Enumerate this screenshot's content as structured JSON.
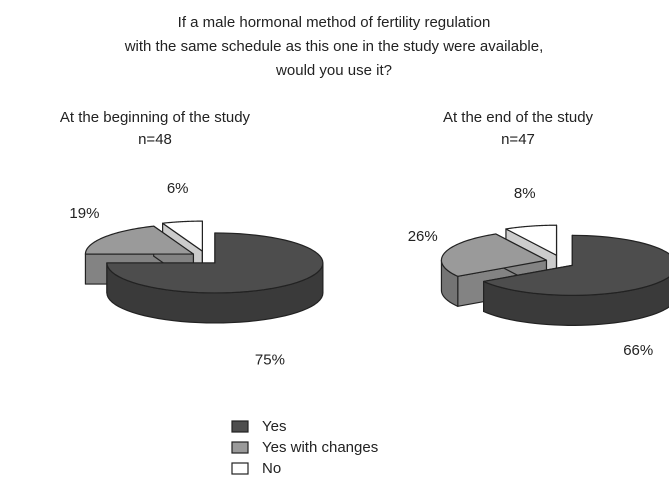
{
  "title": [
    "If a male hormonal method of fertility regulation",
    "with the same schedule as this one in the study were available,",
    "would you use it?"
  ],
  "chart_data": [
    {
      "type": "pie",
      "title": "At the beginning of the study",
      "subtitle": "n=48",
      "categories": [
        "Yes",
        "Yes with changes",
        "No"
      ],
      "values": [
        75,
        19,
        6
      ],
      "value_labels": [
        "75%",
        "19%",
        "6%"
      ],
      "colors": [
        "#4d4d4d",
        "#9a9a9a",
        "#ffffff"
      ]
    },
    {
      "type": "pie",
      "title": "At the end of the study",
      "subtitle": "n=47",
      "categories": [
        "Yes",
        "Yes with changes",
        "No"
      ],
      "values": [
        66,
        26,
        8
      ],
      "value_labels": [
        "66%",
        "26%",
        "8%"
      ],
      "colors": [
        "#4d4d4d",
        "#9a9a9a",
        "#ffffff"
      ]
    }
  ]
}
